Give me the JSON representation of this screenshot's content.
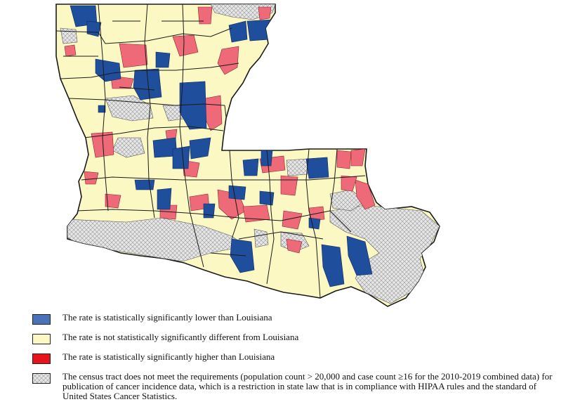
{
  "colors": {
    "lower": "#1f4e9c",
    "not_different": "#fbf8c4",
    "higher": "#ef6a78",
    "not_published": "#e4e4e4",
    "boundary": "#1a1a1a"
  },
  "legend": [
    {
      "key": "lower",
      "label": "The rate is statistically significantly lower than Louisiana",
      "swatch": "#4a72b8"
    },
    {
      "key": "not_different",
      "label": "The rate is not statistically significantly different from Louisiana",
      "swatch": "#fbf8c4"
    },
    {
      "key": "higher",
      "label": "The rate is statistically significantly higher than Louisiana",
      "swatch": "#e8141c"
    },
    {
      "key": "not_published",
      "label": "The census tract does not meet the requirements (population count > 20,000 and case count ≥16 for the 2010-2019 combined data) for publication of cancer incidence data, which is a restriction in state law that is in compliance with HIPAA rules and the standard of United States Cancer Statistics.",
      "swatch": "crosshatch"
    }
  ]
}
